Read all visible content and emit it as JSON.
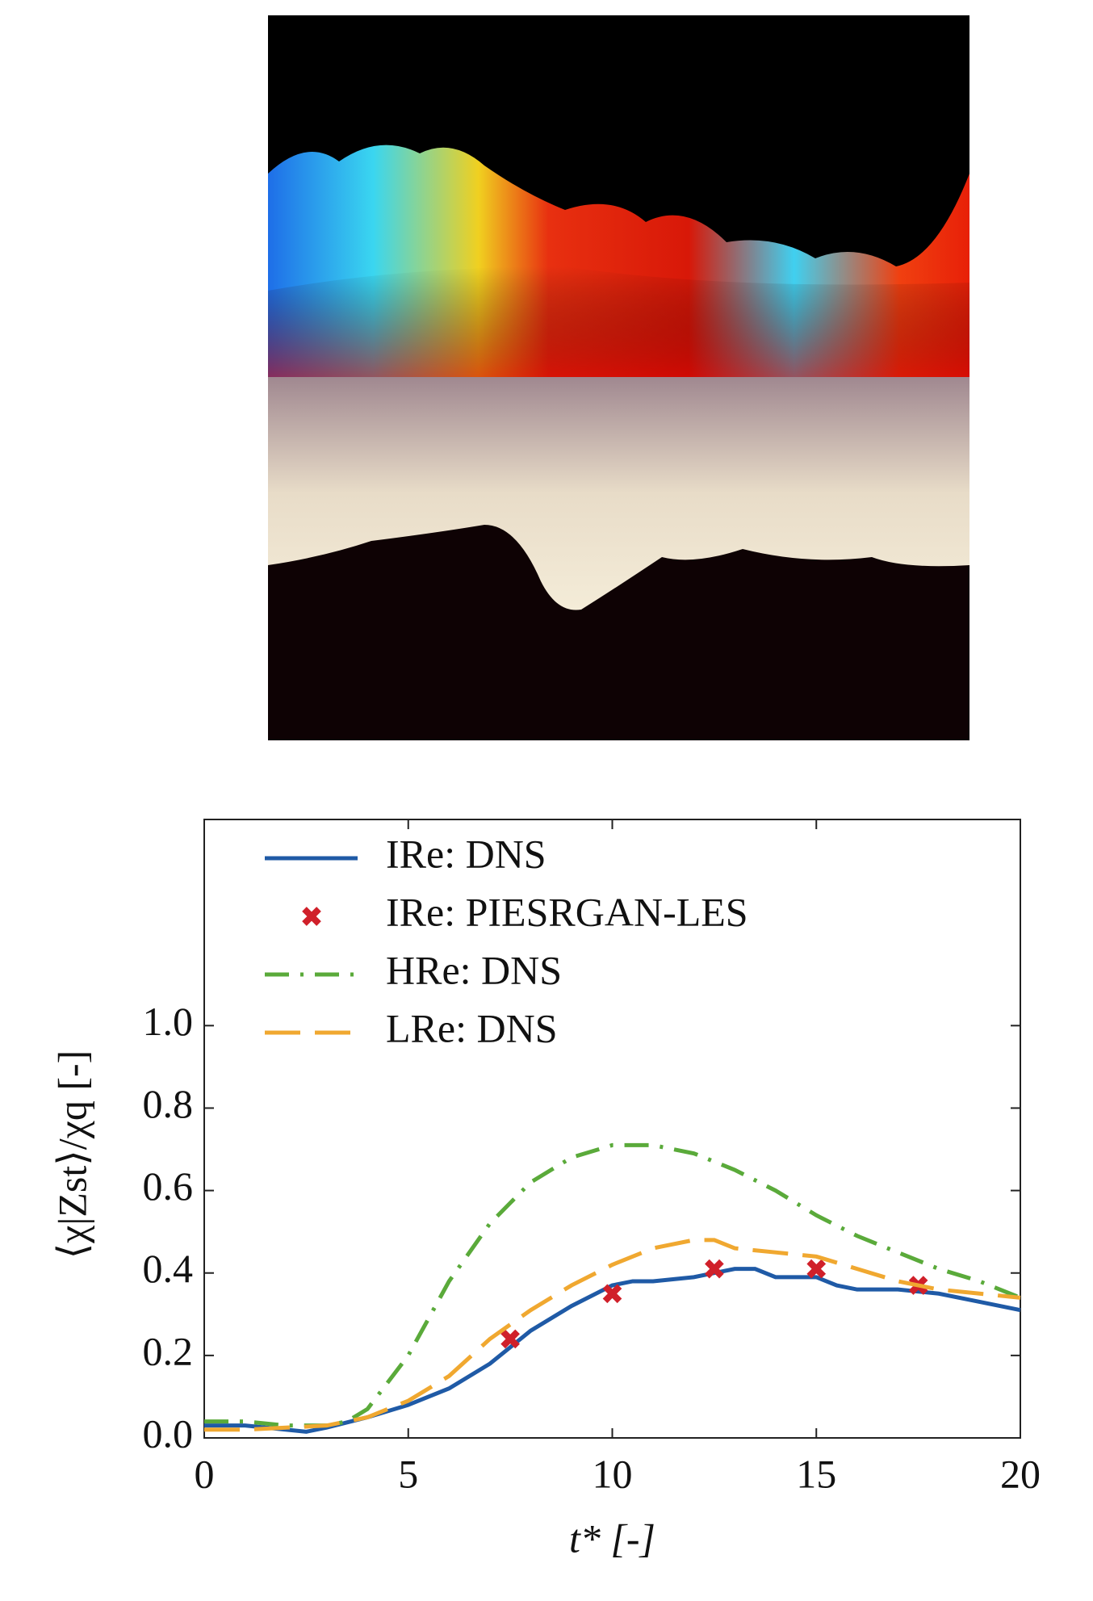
{
  "chart_data": {
    "type": "line",
    "xlabel": "t* [-]",
    "ylabel": "⟨χ|Zst⟩/χq [-]",
    "xlim": [
      0,
      20
    ],
    "xticks": [
      0,
      5,
      10,
      15,
      20
    ],
    "ylim": [
      0,
      1.5
    ],
    "yticks": [
      {
        "value": 0,
        "label": "0.0"
      },
      {
        "value": 0.2,
        "label": "0.2"
      },
      {
        "value": 0.4,
        "label": "0.4"
      },
      {
        "value": 0.6,
        "label": "0.6"
      },
      {
        "value": 0.8,
        "label": "0.8"
      },
      {
        "value": 1.0,
        "label": "1.0"
      }
    ],
    "legend": "upper left",
    "series": [
      {
        "name": "IRe: DNS",
        "color": "#1f5aa6",
        "style": "solid",
        "x": [
          0,
          1,
          2,
          2.5,
          3,
          4,
          5,
          6,
          7,
          7.5,
          8,
          9,
          10,
          10.5,
          11,
          12,
          12.5,
          13,
          13.5,
          14,
          15,
          15.5,
          16,
          17,
          18,
          19,
          20
        ],
        "values": [
          0.03,
          0.03,
          0.02,
          0.015,
          0.025,
          0.05,
          0.08,
          0.12,
          0.18,
          0.22,
          0.26,
          0.32,
          0.37,
          0.38,
          0.38,
          0.39,
          0.4,
          0.41,
          0.41,
          0.39,
          0.39,
          0.37,
          0.36,
          0.36,
          0.35,
          0.33,
          0.31
        ]
      },
      {
        "name": "IRe: PIESRGAN-LES",
        "color": "#d0202a",
        "style": "marker",
        "x": [
          7.5,
          10,
          12.5,
          15,
          17.5
        ],
        "values": [
          0.24,
          0.35,
          0.41,
          0.41,
          0.37
        ]
      },
      {
        "name": "HRe: DNS",
        "color": "#5aaa3a",
        "style": "dashdot",
        "x": [
          0,
          1,
          2,
          3,
          3.5,
          4,
          5,
          6,
          7,
          8,
          9,
          10,
          11,
          12,
          13,
          14,
          15,
          16,
          17,
          18,
          19,
          20
        ],
        "values": [
          0.04,
          0.04,
          0.03,
          0.03,
          0.04,
          0.07,
          0.2,
          0.38,
          0.52,
          0.62,
          0.68,
          0.71,
          0.71,
          0.69,
          0.65,
          0.6,
          0.54,
          0.49,
          0.45,
          0.41,
          0.38,
          0.34
        ]
      },
      {
        "name": "LRe: DNS",
        "color": "#f0a830",
        "style": "longdash",
        "x": [
          0,
          1,
          2,
          3,
          4,
          5,
          6,
          7,
          8,
          9,
          10,
          11,
          12,
          12.5,
          13,
          14,
          15,
          16,
          17,
          18,
          19,
          20
        ],
        "values": [
          0.02,
          0.02,
          0.025,
          0.03,
          0.05,
          0.09,
          0.15,
          0.24,
          0.31,
          0.37,
          0.42,
          0.46,
          0.48,
          0.48,
          0.46,
          0.45,
          0.44,
          0.41,
          0.38,
          0.36,
          0.35,
          0.34
        ]
      }
    ]
  }
}
